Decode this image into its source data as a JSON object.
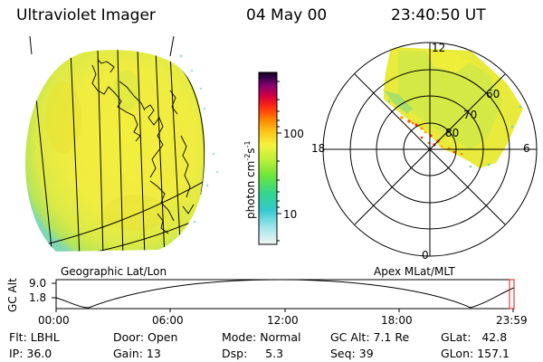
{
  "header": {
    "title": "Ultraviolet Imager",
    "date": "04 May 00",
    "time": "23:40:50 UT"
  },
  "colorbar": {
    "label": "photon cm",
    "label_exp": "-2",
    "label_mid": "s",
    "label_exp2": "-1",
    "tick_high": "100",
    "tick_low": "10"
  },
  "map_labels": {
    "geo": "Geographic Lat/Lon",
    "apex": "Apex MLat/MLT"
  },
  "polar": {
    "mlt_top": "12",
    "mlt_left": "18",
    "mlt_right": "6",
    "mlt_bottom": "0",
    "lat_60": "60",
    "lat_70": "70",
    "lat_80": "80"
  },
  "altitude_plot": {
    "axis_label": "GC Alt",
    "y_high": "9.0",
    "y_low": "1.8",
    "x_ticks": [
      "00:00",
      "06:00",
      "12:00",
      "18:00",
      "23:59"
    ]
  },
  "status": {
    "flt": "Flt: LBHL",
    "ip": "IP: 36.0",
    "door": "Door: Open",
    "gain": "Gain: 13",
    "mode": "Mode: Normal",
    "dsp": "Dsp:     5.3",
    "gc_alt": "GC Alt: 7.1 Re",
    "seq": "Seq: 39",
    "glat": "GLat:   42.8",
    "glon": "GLon: 157.1"
  }
}
